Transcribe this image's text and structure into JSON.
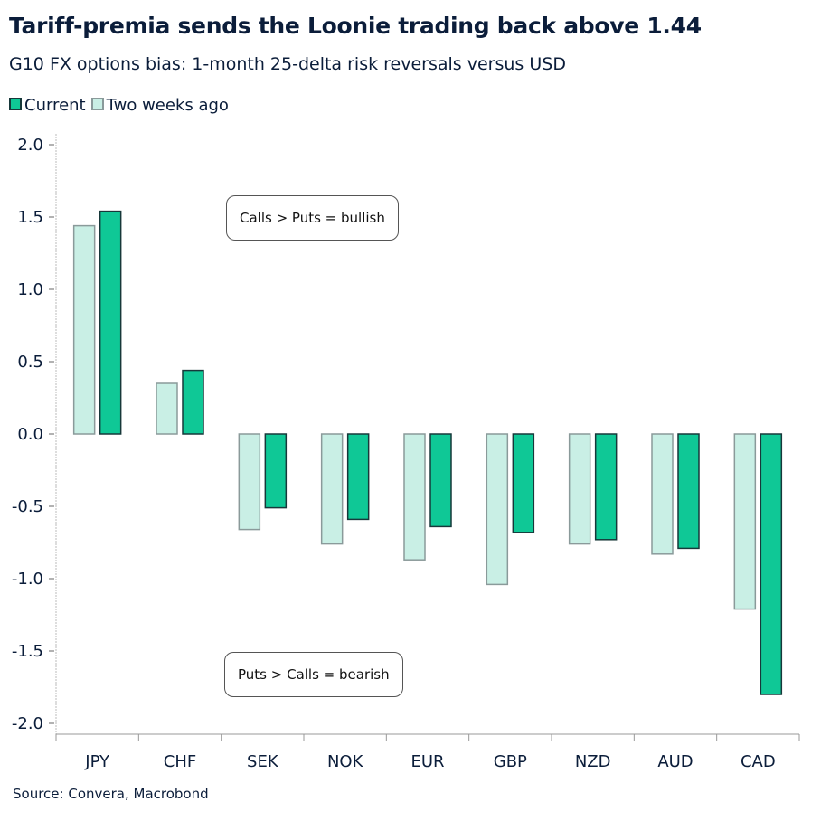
{
  "chart_data": {
    "type": "bar",
    "title": "Tariff-premia sends the Loonie trading back above 1.44",
    "subtitle": "G10 FX options bias: 1-month 25-delta risk reversals versus USD",
    "categories": [
      "JPY",
      "CHF",
      "SEK",
      "NOK",
      "EUR",
      "GBP",
      "NZD",
      "AUD",
      "CAD"
    ],
    "series": [
      {
        "name": "Two weeks ago",
        "color": "#c9efe5",
        "border": "#8a9a9a",
        "values": [
          1.44,
          0.35,
          -0.66,
          -0.76,
          -0.87,
          -1.04,
          -0.76,
          -0.83,
          -1.21
        ]
      },
      {
        "name": "Current",
        "color": "#0fc896",
        "border": "#17383a",
        "values": [
          1.54,
          0.44,
          -0.51,
          -0.59,
          -0.64,
          -0.68,
          -0.73,
          -0.79,
          -1.8
        ]
      }
    ],
    "legend_order": [
      "Current",
      "Two weeks ago"
    ],
    "ylim": [
      -2.0,
      2.0
    ],
    "yticks": [
      "2.0",
      "1.5",
      "1.0",
      "0.5",
      "0.0",
      "-0.5",
      "-1.0",
      "-1.5",
      "-2.0"
    ],
    "legend_position": "top-left",
    "grid": false,
    "annotations": [
      "Calls > Puts = bullish",
      "Puts > Calls = bearish"
    ],
    "source": "Source: Convera, Macrobond"
  }
}
